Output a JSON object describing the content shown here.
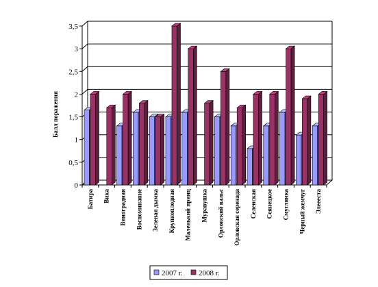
{
  "chart_data": {
    "type": "bar",
    "ylabel": "Балл поражения",
    "xlabel": "",
    "ylim": [
      0,
      3.5
    ],
    "yticks": [
      "0",
      "0,5",
      "1",
      "1,5",
      "2",
      "2,5",
      "3",
      "3,5"
    ],
    "grid": true,
    "legend_position": "bottom",
    "categories": [
      "Батира",
      "Вика",
      "Виноградная",
      "Воспоминание",
      "Зеленая дымка",
      "Крупноплодная",
      "Маленький принц",
      "Муравушка",
      "Орловский вальс",
      "Орловская серенада",
      "Селенская",
      "Сеянецкое",
      "Смуглянка",
      "Черный жемчуг",
      "Элеееста"
    ],
    "series": [
      {
        "name": "2007 г.",
        "color": "#9999ff",
        "values": [
          1.65,
          0,
          1.3,
          1.6,
          1.5,
          1.5,
          1.6,
          0,
          1.5,
          1.3,
          0.8,
          1.3,
          1.6,
          1.1,
          1.3
        ]
      },
      {
        "name": "2008 г.",
        "color": "#993366",
        "values": [
          2.0,
          1.7,
          2.0,
          1.8,
          1.5,
          3.5,
          3.0,
          1.8,
          2.5,
          1.7,
          2.0,
          2.0,
          3.0,
          1.9,
          2.0
        ]
      }
    ]
  }
}
